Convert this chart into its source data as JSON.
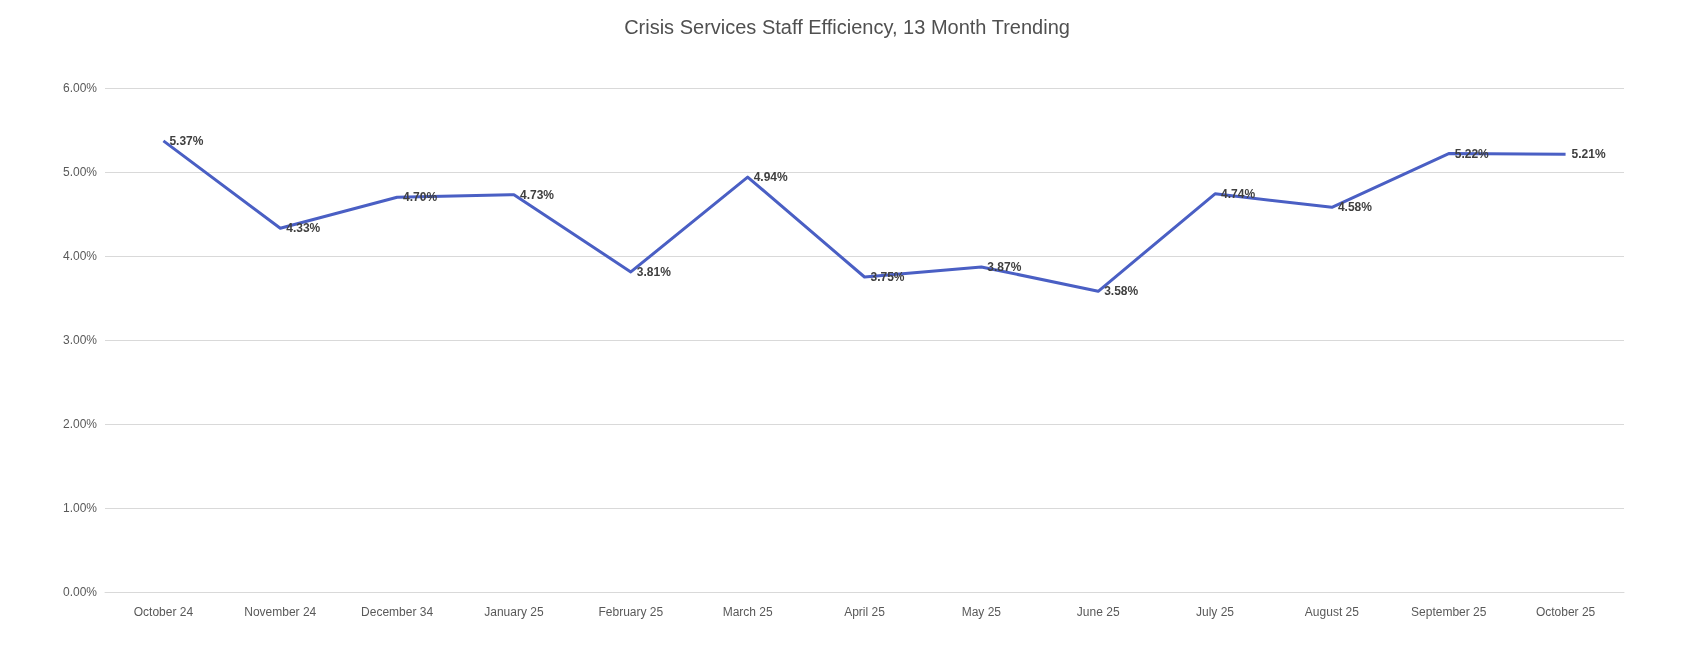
{
  "chart_data": {
    "type": "line",
    "title": "Crisis Services Staff Efficiency, 13 Month Trending",
    "categories": [
      "October 24",
      "November 24",
      "December 34",
      "January 25",
      "February 25",
      "March 25",
      "April 25",
      "May 25",
      "June 25",
      "July 25",
      "August 25",
      "September 25",
      "October 25"
    ],
    "series": [
      {
        "color": "#4a5fc4",
        "values": [
          5.37,
          4.33,
          4.7,
          4.73,
          3.81,
          4.94,
          3.75,
          3.87,
          3.58,
          4.74,
          4.58,
          5.22,
          5.21
        ],
        "value_labels": [
          "5.37%",
          "4.33%",
          "4.70%",
          "4.73%",
          "3.81%",
          "4.94%",
          "3.75%",
          "3.87%",
          "3.58%",
          "4.74%",
          "4.58%",
          "5.22%",
          "5.21%"
        ]
      }
    ],
    "ylim": [
      0,
      6
    ],
    "yticks": [
      {
        "value": 0,
        "label": "0.00%"
      },
      {
        "value": 1,
        "label": "1.00%"
      },
      {
        "value": 2,
        "label": "2.00%"
      },
      {
        "value": 3,
        "label": "3.00%"
      },
      {
        "value": 4,
        "label": "4.00%"
      },
      {
        "value": 5,
        "label": "5.00%"
      },
      {
        "value": 6,
        "label": "6.00%"
      }
    ],
    "grid": "y",
    "marker": "none",
    "line_style": "solid"
  }
}
